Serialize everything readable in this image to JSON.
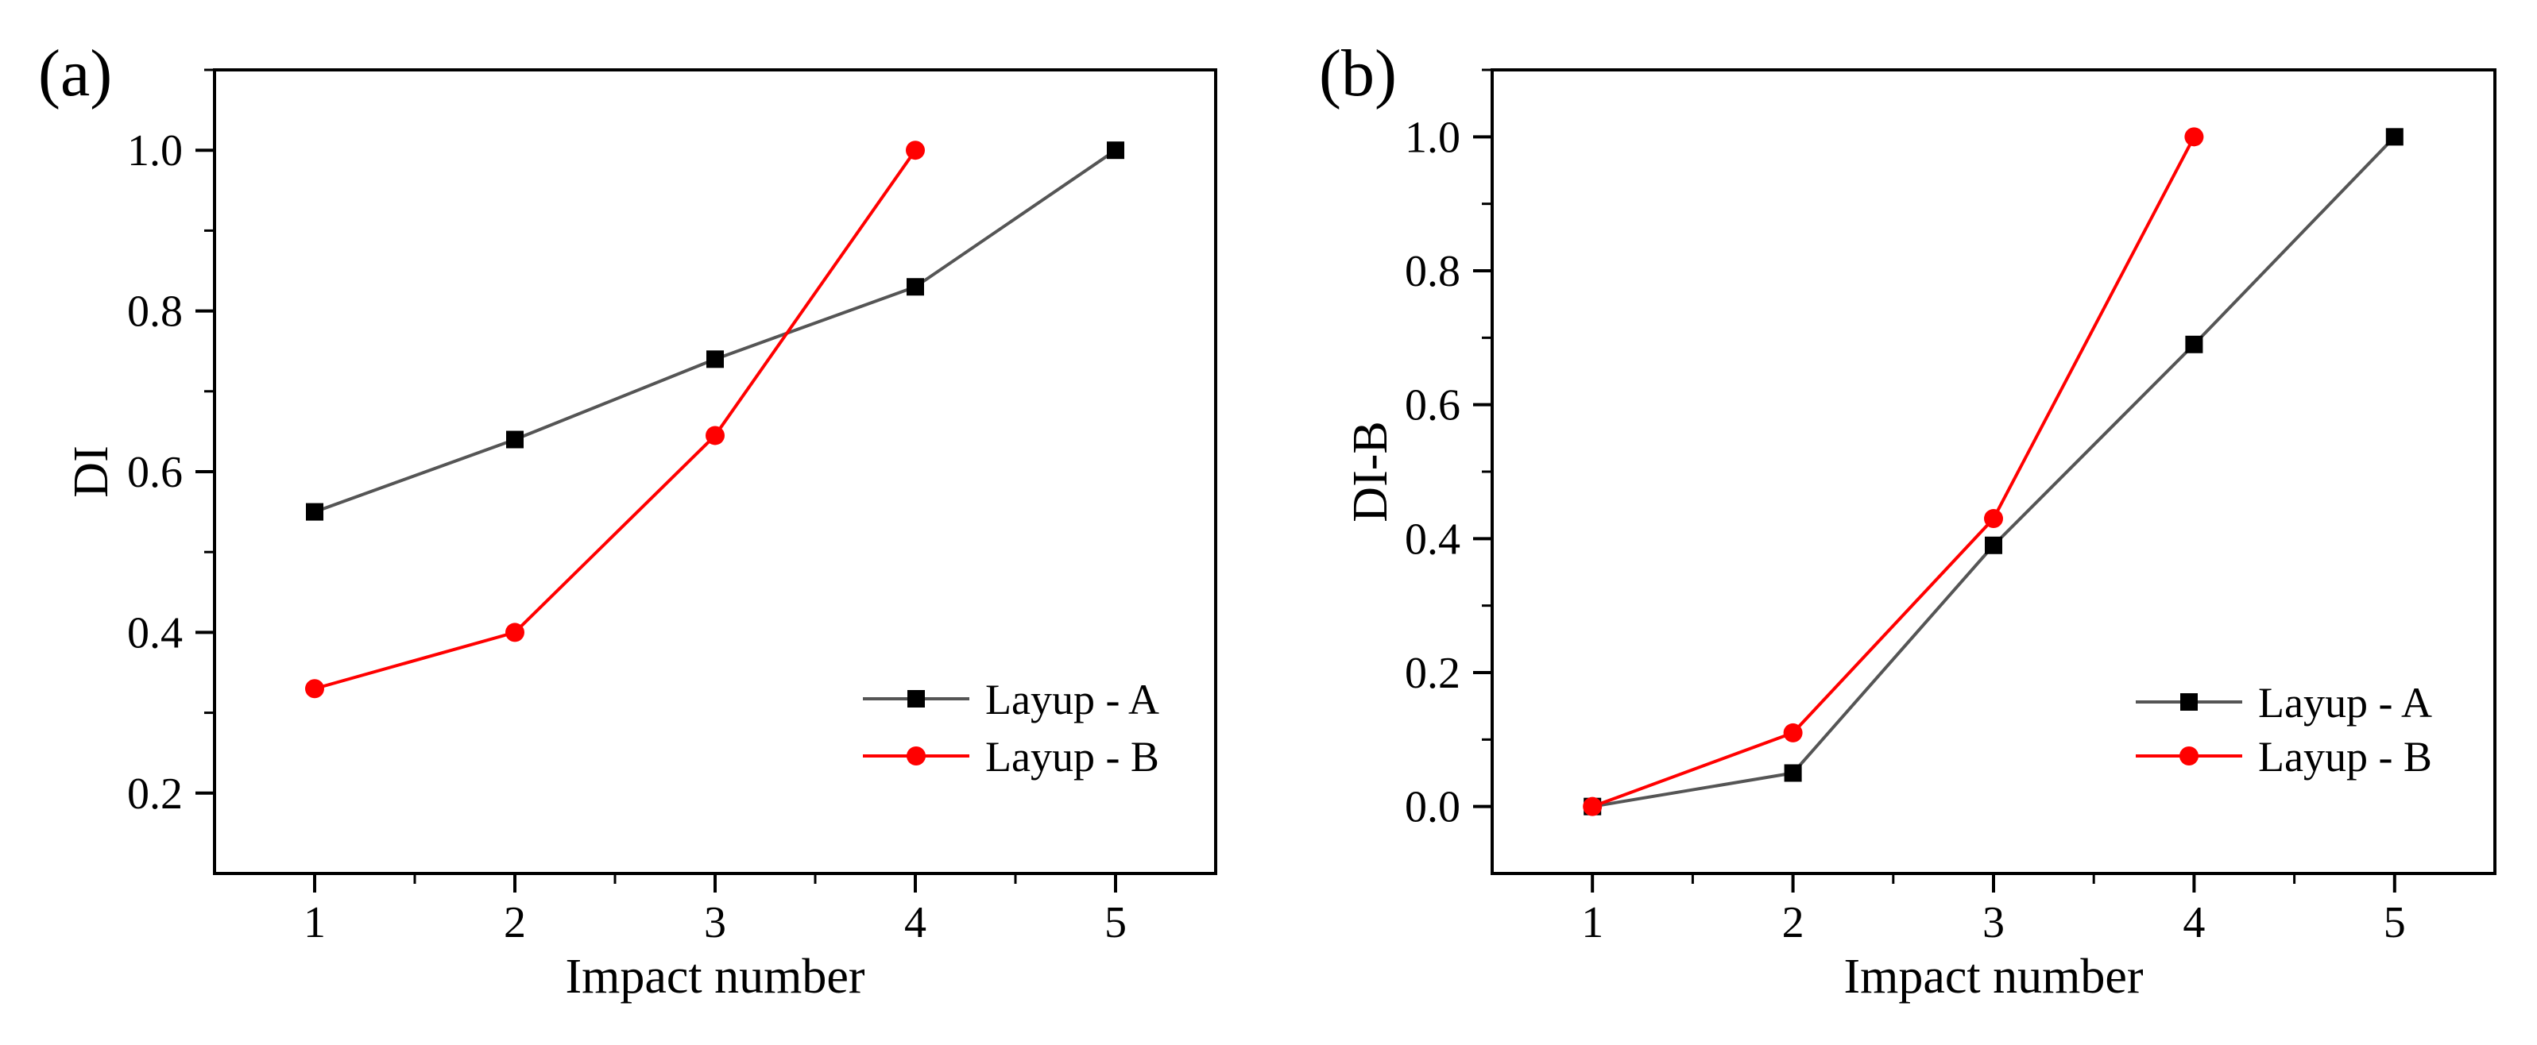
{
  "chart_data": [
    {
      "type": "line",
      "panel_label": "(a)",
      "xlabel": "Impact number",
      "ylabel": "DI",
      "x": [
        1,
        2,
        3,
        4,
        5
      ],
      "xlim": [
        0.5,
        5.5
      ],
      "ylim": [
        0.1,
        1.1
      ],
      "xticks": [
        1,
        2,
        3,
        4,
        5
      ],
      "xtick_labels": [
        "1",
        "2",
        "3",
        "4",
        "5"
      ],
      "yticks": [
        0.2,
        0.4,
        0.6,
        0.8,
        1.0
      ],
      "ytick_labels": [
        "0.2",
        "0.4",
        "0.6",
        "0.8",
        "1.0"
      ],
      "legend_position": "bottom-right",
      "series": [
        {
          "name": "Layup - A",
          "marker": "square",
          "color": "#000000",
          "line_color": "#555555",
          "x": [
            1,
            2,
            3,
            4,
            5
          ],
          "values": [
            0.55,
            0.64,
            0.74,
            0.83,
            1.0
          ]
        },
        {
          "name": "Layup - B",
          "marker": "circle",
          "color": "#ff0000",
          "line_color": "#ff0000",
          "x": [
            1,
            2,
            3,
            4
          ],
          "values": [
            0.33,
            0.4,
            0.645,
            1.0
          ]
        }
      ]
    },
    {
      "type": "line",
      "panel_label": "(b)",
      "xlabel": "Impact number",
      "ylabel": "DI-B",
      "x": [
        1,
        2,
        3,
        4,
        5
      ],
      "xlim": [
        0.5,
        5.5
      ],
      "ylim": [
        -0.1,
        1.1
      ],
      "xticks": [
        1,
        2,
        3,
        4,
        5
      ],
      "xtick_labels": [
        "1",
        "2",
        "3",
        "4",
        "5"
      ],
      "yticks": [
        0.0,
        0.2,
        0.4,
        0.6,
        0.8,
        1.0
      ],
      "ytick_labels": [
        "0.0",
        "0.2",
        "0.4",
        "0.6",
        "0.8",
        "1.0"
      ],
      "legend_position": "bottom-right",
      "series": [
        {
          "name": "Layup - A",
          "marker": "square",
          "color": "#000000",
          "line_color": "#555555",
          "x": [
            1,
            2,
            3,
            4,
            5
          ],
          "values": [
            0.0,
            0.05,
            0.39,
            0.69,
            1.0
          ]
        },
        {
          "name": "Layup - B",
          "marker": "circle",
          "color": "#ff0000",
          "line_color": "#ff0000",
          "x": [
            1,
            2,
            3,
            4
          ],
          "values": [
            0.0,
            0.11,
            0.43,
            1.0
          ]
        }
      ]
    }
  ]
}
